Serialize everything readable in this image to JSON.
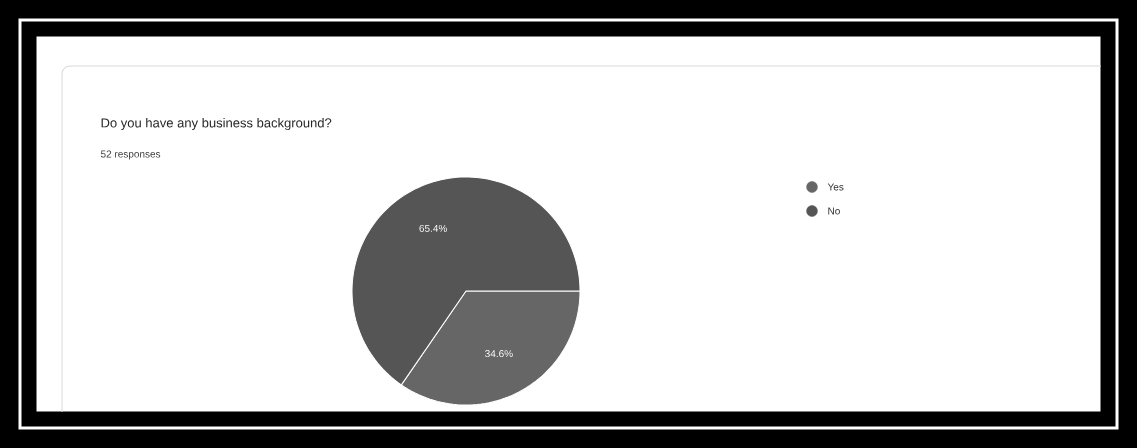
{
  "chart_data": {
    "type": "pie",
    "title": "Do you have any business background?",
    "subtitle": "52 responses",
    "categories": [
      "Yes",
      "No"
    ],
    "values": [
      34.6,
      65.4
    ],
    "colors": [
      "#666666",
      "#555555"
    ],
    "value_labels": [
      "34.6%",
      "65.4%"
    ],
    "legend": "top right"
  }
}
